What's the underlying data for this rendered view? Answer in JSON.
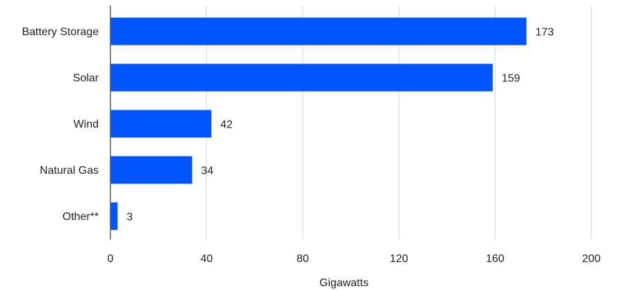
{
  "chart_data": {
    "type": "bar",
    "orientation": "horizontal",
    "categories": [
      "Battery Storage",
      "Solar",
      "Wind",
      "Natural Gas",
      "Other**"
    ],
    "values": [
      173,
      159,
      42,
      34,
      3
    ],
    "value_labels": [
      "173",
      "159",
      "42",
      "34",
      "3"
    ],
    "xlabel": "Gigawatts",
    "ylabel": "",
    "xlim": [
      0,
      200
    ],
    "xticks": [
      0,
      40,
      80,
      120,
      160,
      200
    ],
    "xtick_labels": [
      "0",
      "40",
      "80",
      "120",
      "160",
      "200"
    ],
    "grid": "vertical",
    "legend": "none",
    "bar_color": "#0055FF"
  }
}
